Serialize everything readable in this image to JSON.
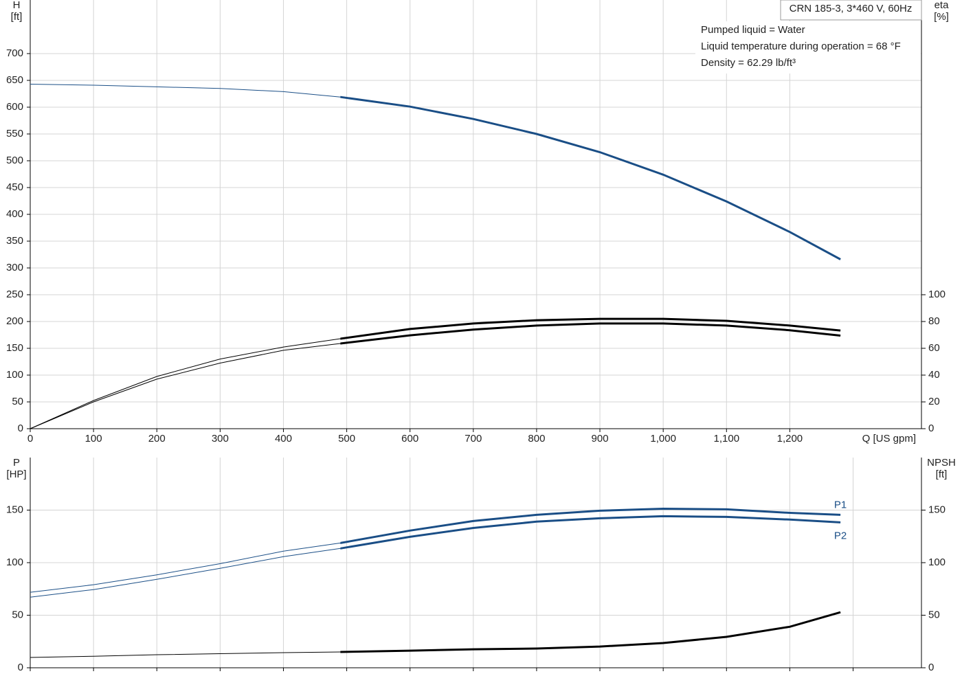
{
  "chart_data": [
    {
      "type": "line",
      "title": "CRN 185-3, 3*460 V, 60Hz",
      "annotations": [
        "Pumped liquid = Water",
        "Liquid temperature during operation = 68 °F",
        "Density = 62.29 lb/ft³"
      ],
      "y_label": "H",
      "y_unit": "[ft]",
      "y2_label": "eta",
      "y2_unit": "[%]",
      "x_label": "Q [US gpm]",
      "x": [
        0,
        100,
        200,
        300,
        400,
        490,
        600,
        700,
        800,
        900,
        1000,
        1100,
        1200,
        1280
      ],
      "xlim": [
        0,
        1408
      ],
      "xticks": [
        0,
        100,
        200,
        300,
        400,
        500,
        600,
        700,
        800,
        900,
        {
          "value": 1000,
          "label": "1,000"
        },
        {
          "value": 1100,
          "label": "1,100"
        },
        {
          "value": 1200,
          "label": "1,200"
        }
      ],
      "ylim": [
        0,
        800
      ],
      "yticks": [
        0,
        50,
        100,
        150,
        200,
        250,
        300,
        350,
        400,
        450,
        500,
        550,
        600,
        650,
        700
      ],
      "y2lim": [
        0,
        320
      ],
      "y2ticks": [
        0,
        20,
        40,
        60,
        80,
        100
      ],
      "grid": true,
      "duty_start": 490,
      "series": [
        {
          "color": "#1a4e86",
          "values": [
            643,
            641,
            638,
            635,
            629,
            619,
            601,
            578,
            550,
            516,
            474,
            424,
            367,
            316
          ]
        },
        {
          "color": "#000000",
          "axis": "y2",
          "values": [
            0,
            21,
            39,
            52,
            61,
            67.2,
            74.4,
            78.5,
            81,
            82,
            82,
            80.5,
            77,
            73.3
          ]
        },
        {
          "color": "#000000",
          "axis": "y2",
          "values": [
            0,
            20,
            37,
            49,
            58.5,
            63.6,
            69.7,
            74,
            77,
            78.5,
            78.5,
            77,
            73.5,
            69.5
          ]
        }
      ]
    },
    {
      "type": "line",
      "y_label": "P",
      "y_unit": "[HP]",
      "y2_label": "NPSH",
      "y2_unit": "[ft]",
      "x": [
        0,
        100,
        200,
        300,
        400,
        490,
        600,
        700,
        800,
        900,
        1000,
        1100,
        1200,
        1280
      ],
      "xlim": [
        0,
        1408
      ],
      "xticks": [
        0,
        100,
        200,
        300,
        400,
        500,
        600,
        700,
        800,
        900,
        1000,
        1100,
        1200,
        1300
      ],
      "ylim": [
        0,
        200
      ],
      "yticks": [
        0,
        50,
        100,
        150
      ],
      "y2lim": [
        0,
        200
      ],
      "y2ticks": [
        0,
        50,
        100,
        150
      ],
      "grid": true,
      "duty_start": 490,
      "series": [
        {
          "name": "P1",
          "color": "#1a4e86",
          "values": [
            71.8,
            79,
            88.4,
            99,
            111,
            118.7,
            130.5,
            139.6,
            145.5,
            149.4,
            151.3,
            150.7,
            147.4,
            145.5
          ]
        },
        {
          "name": "P2",
          "color": "#1a4e86",
          "values": [
            67.2,
            74.4,
            84.2,
            94.6,
            105.7,
            113.5,
            124.6,
            133,
            139,
            142.2,
            144.2,
            143.5,
            141,
            138.3
          ]
        },
        {
          "color": "#000000",
          "axis": "y2",
          "values": [
            9.8,
            11,
            12.4,
            13.4,
            14.4,
            15,
            16.3,
            17.6,
            18.3,
            20.2,
            23.5,
            29.4,
            39,
            52.8
          ]
        }
      ]
    }
  ]
}
